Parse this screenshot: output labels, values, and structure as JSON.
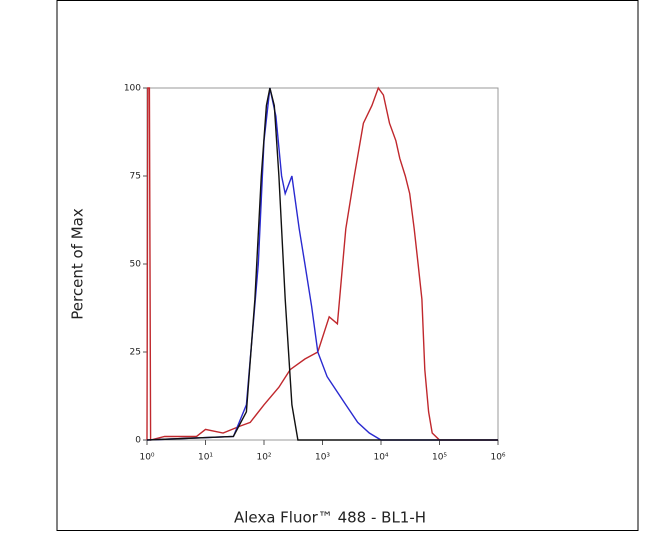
{
  "chart_data": {
    "type": "line",
    "xlabel": "Alexa Fluor™ 488 - BL1-H",
    "ylabel": "Percent of Max",
    "xscale": "log",
    "xlim": [
      1,
      1000000
    ],
    "ylim": [
      0,
      100
    ],
    "xticks": [
      {
        "value": 1,
        "label": "10⁰"
      },
      {
        "value": 10,
        "label": "10¹"
      },
      {
        "value": 100,
        "label": "10²"
      },
      {
        "value": 1000,
        "label": "10³"
      },
      {
        "value": 10000,
        "label": "10⁴"
      },
      {
        "value": 100000,
        "label": "10⁵"
      },
      {
        "value": 1000000,
        "label": "10⁶"
      }
    ],
    "yticks": [
      0,
      25,
      50,
      75,
      100
    ],
    "series": [
      {
        "color": "#c0282d",
        "x": [
          1,
          1.03,
          1.06,
          1.1,
          1.15,
          2,
          4,
          7,
          10,
          20,
          40,
          58,
          100,
          180,
          280,
          500,
          830,
          1300,
          1800,
          2500,
          3500,
          5000,
          7000,
          9000,
          11000,
          14000,
          18000,
          21000,
          26000,
          31000,
          37000,
          43000,
          50000,
          56000,
          65000,
          75000,
          100000,
          1000000
        ],
        "values": [
          0,
          100,
          100,
          100,
          0,
          1,
          1,
          1,
          3,
          2,
          4,
          5,
          10,
          15,
          20,
          23,
          25,
          35,
          33,
          60,
          75,
          90,
          95,
          100,
          98,
          90,
          85,
          80,
          75,
          70,
          60,
          50,
          40,
          20,
          8,
          2,
          0,
          0
        ]
      },
      {
        "color": "#2a2ad0",
        "x": [
          1,
          30,
          50,
          80,
          100,
          126,
          160,
          200,
          230,
          300,
          400,
          500,
          650,
          830,
          1200,
          2500,
          4000,
          6300,
          10000,
          1000000
        ],
        "values": [
          0,
          1,
          10,
          50,
          85,
          100,
          92,
          75,
          70,
          75,
          60,
          50,
          38,
          25,
          18,
          10,
          5,
          2,
          0,
          0
        ]
      },
      {
        "color": "#111111",
        "x": [
          1,
          30,
          50,
          70,
          90,
          110,
          126,
          150,
          180,
          230,
          300,
          380,
          1000000
        ],
        "values": [
          0,
          1,
          8,
          40,
          75,
          95,
          100,
          95,
          75,
          40,
          10,
          0,
          0
        ]
      }
    ]
  }
}
